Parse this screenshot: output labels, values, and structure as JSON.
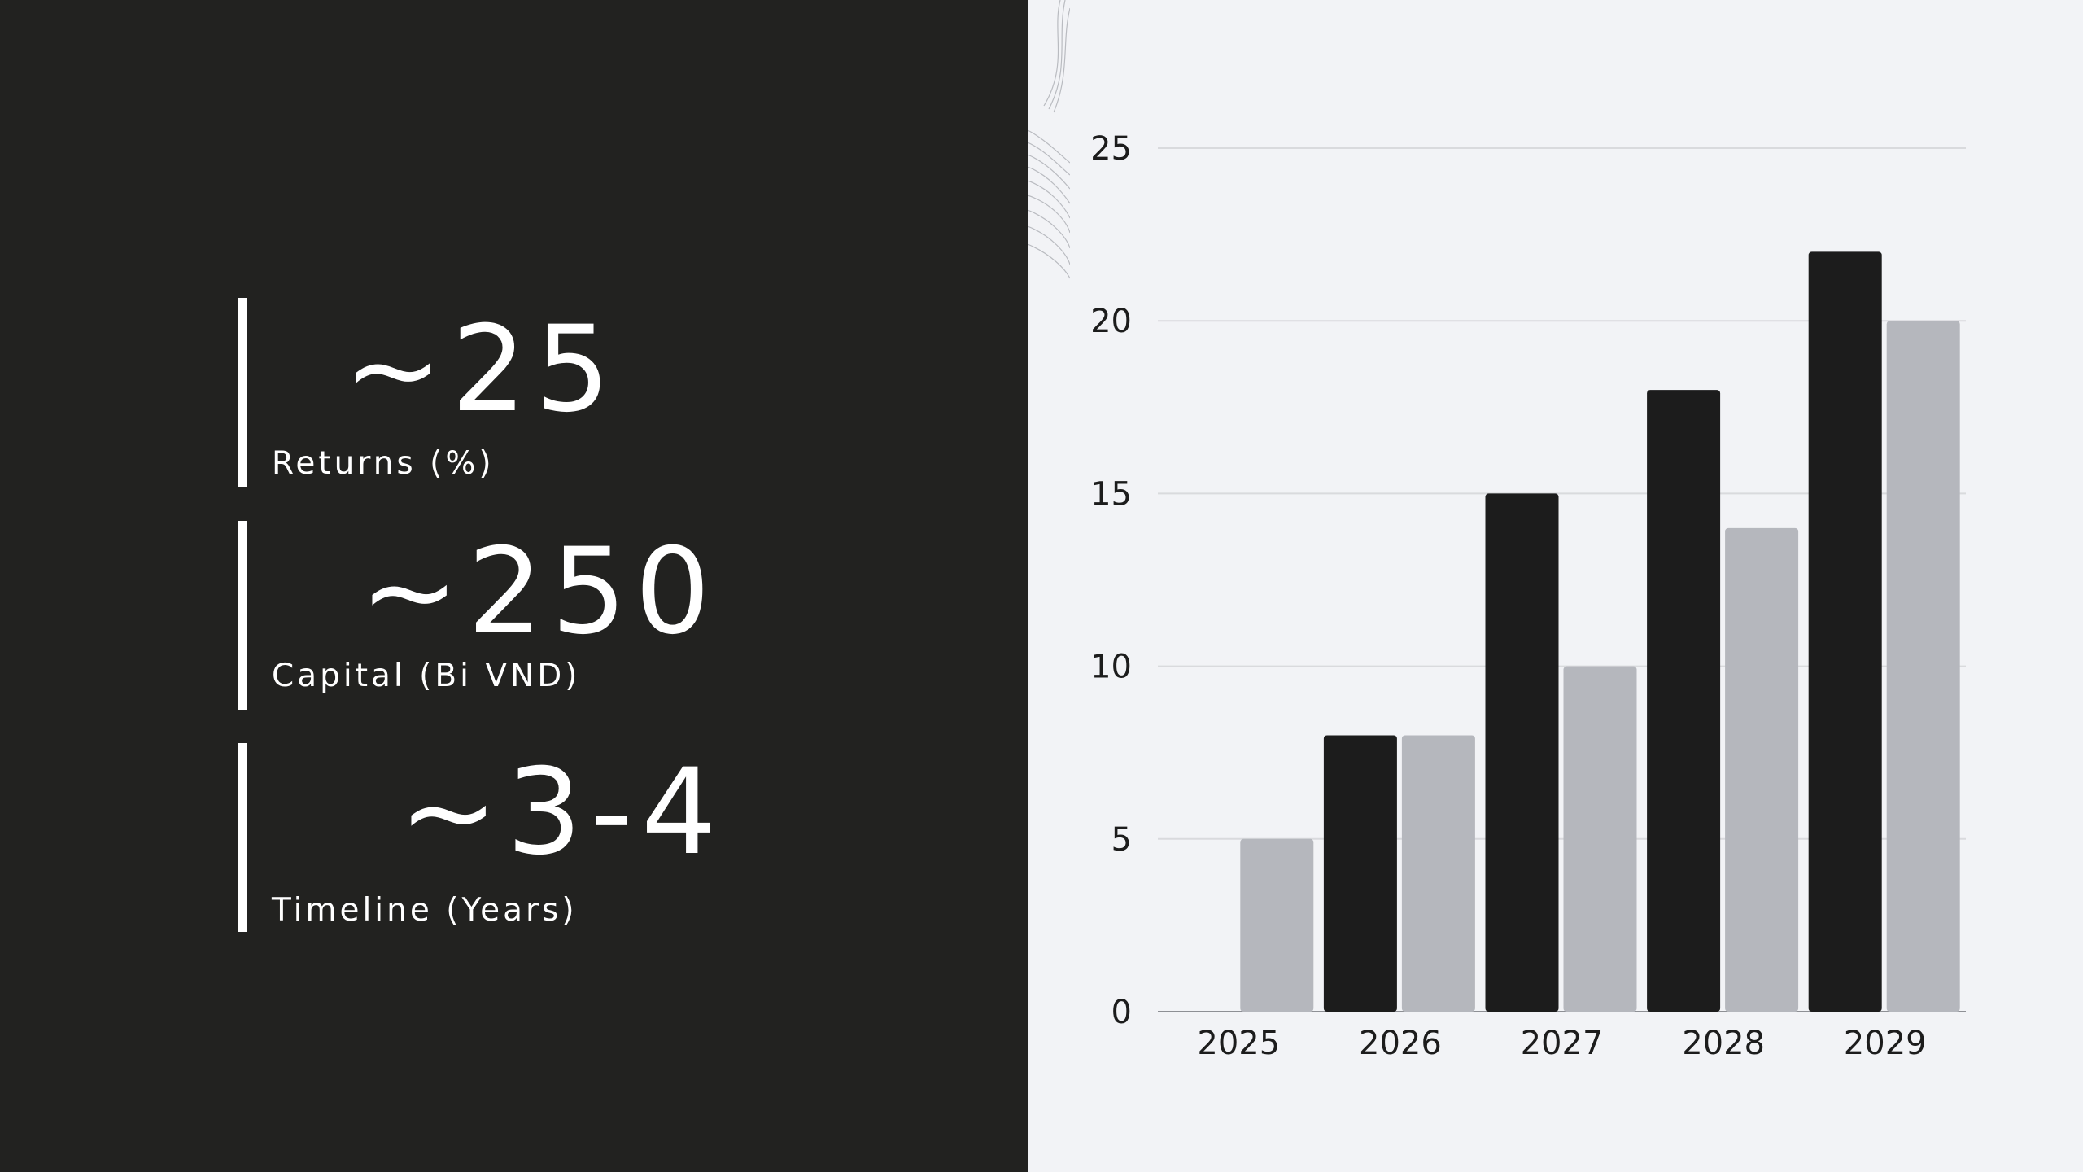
{
  "stats": [
    {
      "value": "~25",
      "label": "Returns (%)"
    },
    {
      "value": "~250",
      "label": "Capital (Bi VND)"
    },
    {
      "value": "~3-4",
      "label": "Timeline (Years)"
    }
  ],
  "colors": {
    "left_bg": "#222220",
    "right_bg": "#f2f3f6",
    "series_dark": "#1c1c1c",
    "series_light": "#b5b7bd",
    "gridline": "#d9dadd",
    "text_light": "#ffffff"
  },
  "chart_data": {
    "type": "bar",
    "title": "",
    "xlabel": "",
    "ylabel": "",
    "categories": [
      "2025",
      "2026",
      "2027",
      "2028",
      "2029"
    ],
    "series": [
      {
        "color": "#1c1c1c",
        "values": [
          0,
          8,
          15,
          18,
          22
        ]
      },
      {
        "color": "#b5b7bd",
        "values": [
          5,
          8,
          10,
          14,
          20
        ]
      }
    ],
    "ylim": [
      0,
      25
    ],
    "yticks": [
      0,
      5,
      10,
      15,
      20,
      25
    ],
    "grid": true,
    "legend": "none"
  }
}
